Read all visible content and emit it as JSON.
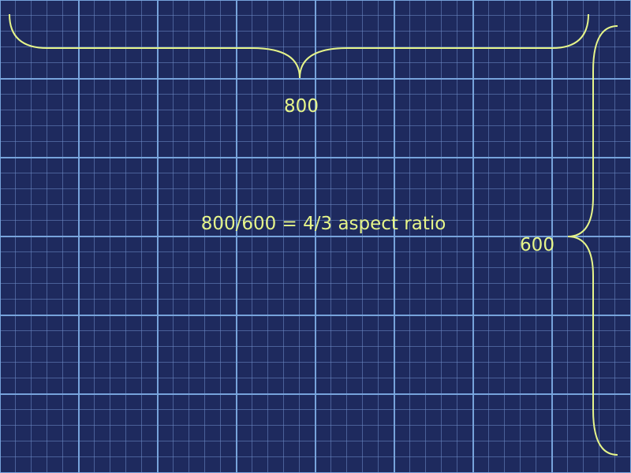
{
  "colors": {
    "background": "#1e2a5e",
    "grid_major": "#7aa8e0",
    "grid_minor": "#5c78b8",
    "annotation": "#e6f58a"
  },
  "annotations": {
    "width_label": "800",
    "height_label": "600",
    "ratio_label": "800/600 = 4/3 aspect ratio"
  }
}
